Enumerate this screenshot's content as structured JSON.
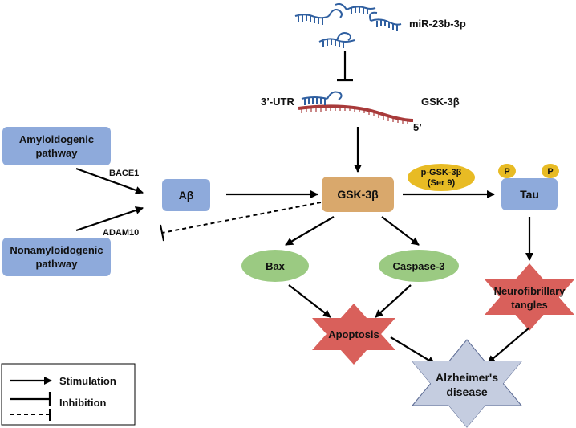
{
  "mirna": {
    "label": "miR-23b-3p"
  },
  "mrna": {
    "utr_label": "3’-UTR",
    "gene_label": "GSK-3β",
    "five_prime_label": "5’"
  },
  "nodes": {
    "amyloidogenic": {
      "line1": "Amyloidogenic",
      "line2": "pathway"
    },
    "nonamyloidogenic": {
      "line1": "Nonamyloidogenic",
      "line2": "pathway"
    },
    "abeta": {
      "label": "Aβ"
    },
    "gsk3b": {
      "label": "GSK-3β"
    },
    "pgsk": {
      "line1": "p-GSK-3β",
      "line2": "(Ser 9)"
    },
    "tau": {
      "label": "Tau"
    },
    "phospho": {
      "label": "P"
    },
    "bax": {
      "label": "Bax"
    },
    "caspase3": {
      "label": "Caspase-3"
    },
    "apoptosis": {
      "label": "Apoptosis"
    },
    "nft": {
      "line1": "Neurofibrillary",
      "line2": "tangles"
    },
    "alzheimers": {
      "line1": "Alzheimer's",
      "line2": "disease"
    }
  },
  "edge_labels": {
    "bace1": "BACE1",
    "adam10": "ADAM10"
  },
  "legend": {
    "stimulation": "Stimulation",
    "inhibition": "Inhibition"
  },
  "colors": {
    "box_blue": "#8eaadb",
    "box_orange": "#d9a86c",
    "ellipse_green": "#9bca82",
    "ellipse_yellow": "#e8bb24",
    "star_red": "#d9605b",
    "star_grey": "#c5cde0",
    "rna_red": "#a83a3a",
    "rna_blue": "#2f5fa0"
  }
}
